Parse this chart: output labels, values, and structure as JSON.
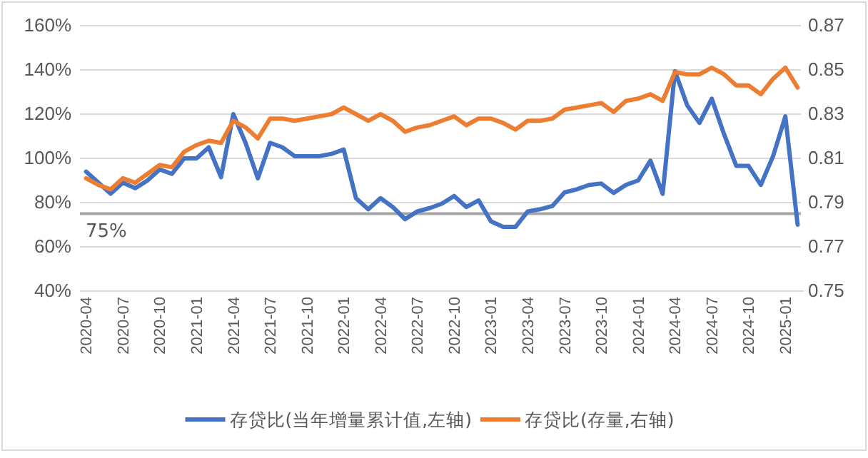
{
  "chart_data": {
    "type": "line",
    "categories": [
      "2020-04",
      null,
      null,
      "2020-07",
      null,
      null,
      "2020-10",
      null,
      null,
      "2021-01",
      null,
      null,
      "2021-04",
      null,
      null,
      "2021-07",
      null,
      null,
      "2021-10",
      null,
      null,
      "2022-01",
      null,
      null,
      "2022-04",
      null,
      null,
      "2022-07",
      null,
      null,
      "2022-10",
      null,
      null,
      "2023-01",
      null,
      null,
      "2023-04",
      null,
      null,
      "2023-07",
      null,
      null,
      "2023-10",
      null,
      null,
      "2024-01",
      null,
      null,
      "2024-04",
      null,
      null,
      "2024-07",
      null,
      null,
      "2024-10",
      null,
      null,
      "2025-01",
      null
    ],
    "series": [
      {
        "name": "存贷比(当年增量累计值,左轴)",
        "color": "#4472c4",
        "values": [
          94,
          89,
          84,
          89,
          86.5,
          90,
          95,
          93,
          100,
          100,
          105,
          91.5,
          120,
          107,
          91,
          107,
          105,
          101,
          101,
          101,
          102,
          104,
          82,
          77,
          82,
          78,
          72.5,
          76,
          77.5,
          79.5,
          83,
          78,
          81,
          71.5,
          69,
          69,
          76,
          77,
          78.4,
          84.6,
          86,
          88,
          88.6,
          84.4,
          88,
          90,
          99,
          84,
          139.4,
          124,
          116,
          127,
          111,
          96.6,
          96.6,
          88,
          101,
          119,
          70
        ]
      },
      {
        "name": "存贷比(存量,右轴)",
        "color": "#ed7d31",
        "axis": "y2",
        "values": [
          0.801,
          0.798,
          0.796,
          0.801,
          0.799,
          0.803,
          0.807,
          0.806,
          0.813,
          0.816,
          0.818,
          0.817,
          0.827,
          0.824,
          0.819,
          0.828,
          0.828,
          0.827,
          0.828,
          0.829,
          0.83,
          0.833,
          0.83,
          0.827,
          0.83,
          0.827,
          0.822,
          0.824,
          0.825,
          0.827,
          0.829,
          0.825,
          0.828,
          0.828,
          0.826,
          0.823,
          0.827,
          0.827,
          0.828,
          0.832,
          0.833,
          0.834,
          0.835,
          0.831,
          0.836,
          0.837,
          0.839,
          0.836,
          0.849,
          0.848,
          0.848,
          0.851,
          0.848,
          0.843,
          0.843,
          0.839,
          0.846,
          0.851,
          0.842
        ]
      }
    ],
    "ylim": [
      40,
      160
    ],
    "yticks": [
      {
        "value": 40,
        "label": "40%"
      },
      {
        "value": 60,
        "label": "60%"
      },
      {
        "value": 80,
        "label": "80%"
      },
      {
        "value": 100,
        "label": "100%"
      },
      {
        "value": 120,
        "label": "120%"
      },
      {
        "value": 140,
        "label": "140%"
      },
      {
        "value": 160,
        "label": "160%"
      }
    ],
    "y2lim": [
      0.75,
      0.87
    ],
    "y2ticks": [
      0.75,
      0.77,
      0.79,
      0.81,
      0.83,
      0.85,
      0.87
    ],
    "ref_lines": [
      {
        "axis": "y",
        "value": 75,
        "label": "75%",
        "color": "#a6a6a6"
      }
    ],
    "grid": "y",
    "legend": "bottom",
    "marker": "none",
    "line_style": "solid"
  }
}
